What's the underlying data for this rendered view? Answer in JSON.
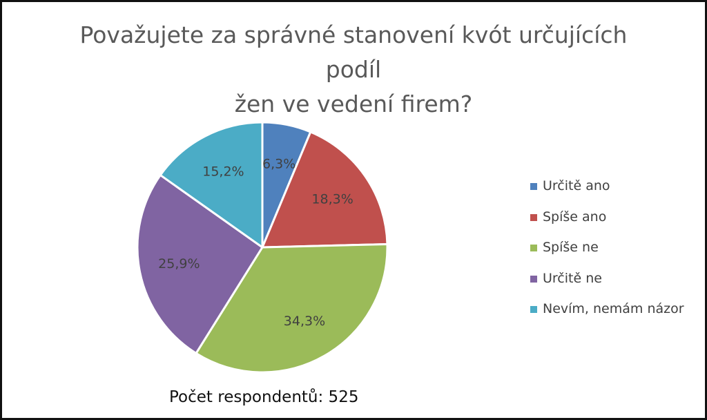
{
  "chart_data": {
    "type": "pie",
    "title_lines": [
      "Považujete za správné stanovení kvót určujících podíl",
      "žen ve vedení firem?"
    ],
    "title": "Považujete za správné stanovení kvót určujících podíl žen ve vedení firem?",
    "categories": [
      "Určitě ano",
      "Spíše ano",
      "Spíše ne",
      "Určitě ne",
      "Nevím, nemám názor"
    ],
    "values": [
      6.3,
      18.3,
      34.3,
      25.9,
      15.2
    ],
    "data_labels": [
      "6,3%",
      "18,3%",
      "34,3%",
      "25,9%",
      "15,2%"
    ],
    "colors": [
      "#4f81bd",
      "#c0504d",
      "#9bbb59",
      "#8064a2",
      "#4bacc6"
    ],
    "legend_position": "right",
    "start_angle": "12 o'clock, clockwise"
  },
  "footnote": "Počet respondentů: 525"
}
